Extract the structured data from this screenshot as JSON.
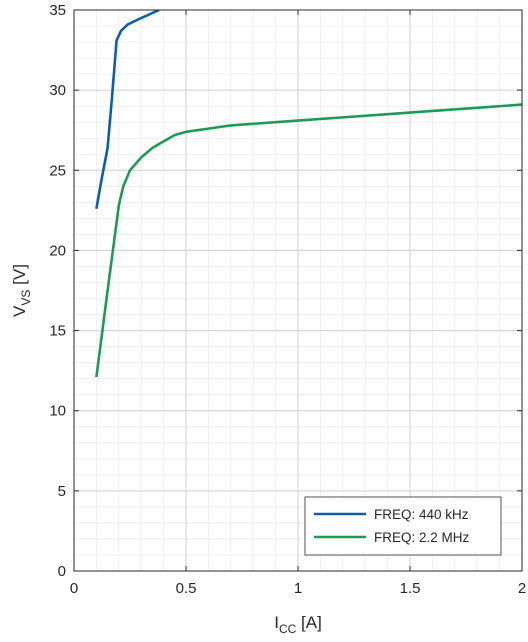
{
  "chart_data": {
    "type": "line",
    "xlabel": {
      "main": "I",
      "sub": "CC",
      "unit": " [A]"
    },
    "ylabel": {
      "main": "V",
      "sub": "VS",
      "unit": " [V]"
    },
    "xlim": [
      0,
      2
    ],
    "ylim": [
      0,
      35
    ],
    "xticks": [
      0,
      0.5,
      1,
      1.5,
      2
    ],
    "xtick_labels": [
      "0",
      "0.5",
      "1",
      "1.5",
      "2"
    ],
    "yticks": [
      0,
      5,
      10,
      15,
      20,
      25,
      30,
      35
    ],
    "ytick_labels": [
      "0",
      "5",
      "10",
      "15",
      "20",
      "25",
      "30",
      "35"
    ],
    "x_minor_step": 0.1,
    "y_minor_step": 1,
    "grid": true,
    "minor_grid": true,
    "legend_position": "bottom-right",
    "series": [
      {
        "name": "FREQ: 440 kHz",
        "color": "#0d5ea8",
        "x": [
          0.1,
          0.12,
          0.15,
          0.17,
          0.19,
          0.21,
          0.24,
          0.3,
          0.38
        ],
        "y": [
          22.6,
          24.2,
          26.4,
          29.6,
          33.1,
          33.7,
          34.1,
          34.5,
          35.0
        ]
      },
      {
        "name": "FREQ: 2.2 MHz",
        "color": "#1e9a55",
        "x": [
          0.1,
          0.15,
          0.2,
          0.22,
          0.25,
          0.3,
          0.35,
          0.4,
          0.45,
          0.5,
          0.6,
          0.7,
          0.8,
          0.9,
          1.0,
          1.2,
          1.4,
          1.6,
          1.8,
          2.0
        ],
        "y": [
          12.1,
          17.5,
          22.8,
          24.0,
          25.0,
          25.8,
          26.4,
          26.8,
          27.2,
          27.4,
          27.6,
          27.8,
          27.9,
          28.0,
          28.1,
          28.3,
          28.5,
          28.7,
          28.9,
          29.1
        ]
      }
    ]
  }
}
